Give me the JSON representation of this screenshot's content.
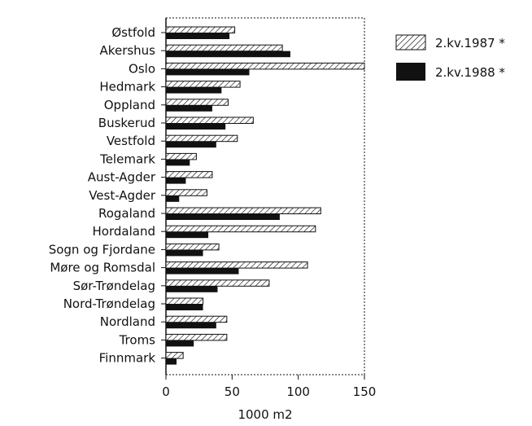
{
  "chart_data": {
    "type": "bar",
    "orientation": "horizontal",
    "categories": [
      "Østfold",
      "Akershus",
      "Oslo",
      "Hedmark",
      "Oppland",
      "Buskerud",
      "Vestfold",
      "Telemark",
      "Aust-Agder",
      "Vest-Agder",
      "Rogaland",
      "Hordaland",
      "Sogn og Fjordane",
      "Møre og Romsdal",
      "Sør-Trøndelag",
      "Nord-Trøndelag",
      "Nordland",
      "Troms",
      "Finnmark"
    ],
    "series": [
      {
        "name": "2.kv.1987 *",
        "pattern": "hatched",
        "values": [
          52,
          88,
          150,
          56,
          47,
          66,
          54,
          23,
          35,
          31,
          117,
          113,
          40,
          107,
          78,
          28,
          46,
          46,
          13
        ]
      },
      {
        "name": "2.kv.1988 *",
        "pattern": "solid",
        "values": [
          48,
          94,
          63,
          42,
          35,
          45,
          38,
          18,
          15,
          10,
          86,
          32,
          28,
          55,
          39,
          28,
          38,
          21,
          8
        ]
      }
    ],
    "xlabel": "1000 m2",
    "ylabel": "",
    "title": "",
    "xlim": [
      0,
      150
    ],
    "xticks": [
      0,
      50,
      100,
      150
    ],
    "grid": false,
    "legend_position": "right",
    "colors": {
      "solid": "#111111",
      "hatch": "#111111",
      "background": "#ffffff"
    }
  }
}
